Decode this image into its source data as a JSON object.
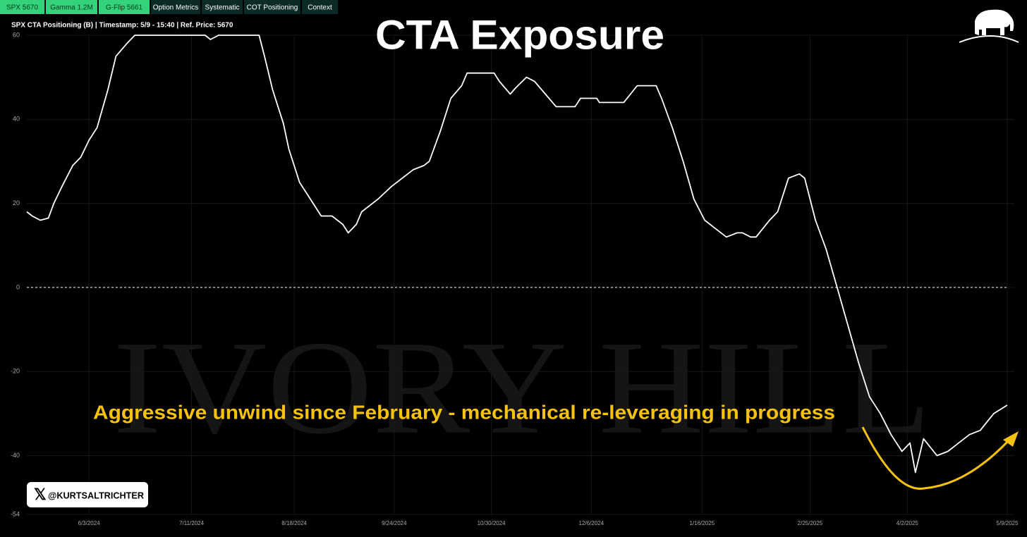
{
  "tabs": [
    "SPX 5670",
    "Gamma 1.2M",
    "G-Flip 5661",
    "Option Metrics",
    "Systematic",
    "COT Positioning",
    "Context"
  ],
  "badge": "@KURTSALTRICHTER",
  "chart_data": {
    "type": "line",
    "title": "CTA Exposure",
    "subtitle": "SPX CTA Positioning (B) | Timestamp: 5/9 - 15:40  | Ref. Price: 5670",
    "annotation": "Aggressive unwind since February - mechanical re-leveraging in progress",
    "watermark": "IVORY HILL",
    "color": "#ffffff",
    "x": [
      "5/11/2024",
      "5/13/2024",
      "5/16/2024",
      "5/19/2024",
      "5/21/2024",
      "5/24/2024",
      "5/28/2024",
      "5/31/2024",
      "6/3/2024",
      "6/6/2024",
      "6/10/2024",
      "6/13/2024",
      "6/17/2024",
      "6/20/2024",
      "7/16/2024",
      "7/18/2024",
      "7/21/2024",
      "8/5/2024",
      "8/7/2024",
      "8/10/2024",
      "8/14/2024",
      "8/16/2024",
      "8/20/2024",
      "8/24/2024",
      "8/28/2024",
      "9/1/2024",
      "9/5/2024",
      "9/7/2024",
      "9/10/2024",
      "9/12/2024",
      "9/18/2024",
      "9/23/2024",
      "9/27/2024",
      "10/1/2024",
      "10/5/2024",
      "10/7/2024",
      "10/11/2024",
      "10/15/2024",
      "10/19/2024",
      "10/21/2024",
      "10/31/2024",
      "11/2/2024",
      "11/6/2024",
      "11/8/2024",
      "11/12/2024",
      "11/15/2024",
      "11/19/2024",
      "11/23/2024",
      "11/30/2024",
      "12/2/2024",
      "12/8/2024",
      "12/9/2024",
      "12/18/2024",
      "12/23/2024",
      "12/30/2024",
      "1/1/2025",
      "1/5/2025",
      "1/9/2025",
      "1/13/2025",
      "1/17/2025",
      "1/21/2025",
      "1/25/2025",
      "1/29/2025",
      "1/31/2025",
      "2/3/2025",
      "2/5/2025",
      "2/10/2025",
      "2/13/2025",
      "2/17/2025",
      "2/21/2025",
      "2/23/2025",
      "2/27/2025",
      "3/3/2025",
      "3/7/2025",
      "3/11/2025",
      "3/15/2025",
      "3/19/2025",
      "3/23/2025",
      "3/27/2025",
      "3/31/2025",
      "4/3/2025",
      "4/5/2025",
      "4/8/2025",
      "4/13/2025",
      "4/17/2025",
      "4/21/2025",
      "4/25/2025",
      "4/29/2025",
      "5/4/2025",
      "5/9/2025"
    ],
    "values": [
      18,
      17,
      16,
      16.5,
      20,
      24,
      29,
      31,
      35,
      38,
      47,
      55,
      58,
      60,
      60,
      59,
      60,
      60,
      55,
      47,
      39,
      33,
      25,
      21,
      17,
      17,
      15,
      13,
      15,
      18,
      21,
      24,
      26,
      28,
      29,
      30,
      37,
      45,
      48,
      51,
      51,
      49,
      46,
      47.5,
      50,
      49,
      46,
      43,
      43,
      45,
      45,
      44,
      44,
      48,
      48,
      45,
      38,
      30,
      21,
      16,
      14,
      12,
      13,
      13,
      12,
      12,
      16,
      18,
      26,
      27,
      26,
      16,
      9,
      0,
      -9,
      -18,
      -26,
      -30,
      -35,
      -39,
      -37,
      -44,
      -36,
      -40,
      -39,
      -37,
      -35,
      -34,
      -30,
      -28
    ],
    "xlim": [
      "5/11/2024",
      "5/9/2025"
    ],
    "xticks": [
      "6/3/2024",
      "7/11/2024",
      "8/18/2024",
      "9/24/2024",
      "10/30/2024",
      "12/6/2024",
      "1/16/2025",
      "2/25/2025",
      "4/2/2025",
      "5/9/2025"
    ],
    "ylim": [
      -54,
      60
    ],
    "yticks": [
      -54,
      -40,
      -20,
      0,
      20,
      40,
      60
    ],
    "reference_lines": [
      0
    ],
    "grid": true
  }
}
